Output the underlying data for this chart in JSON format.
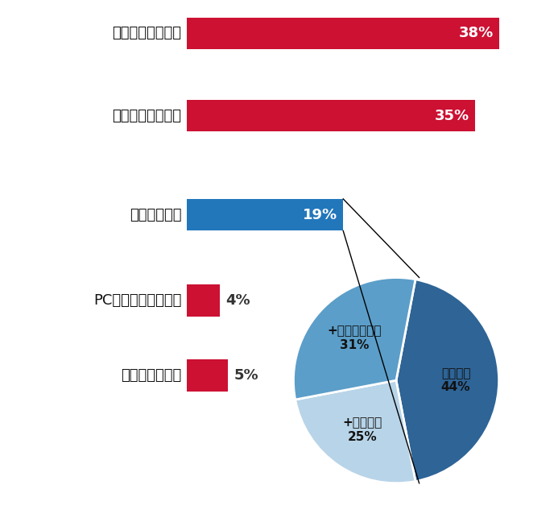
{
  "bar_labels": [
    "専用保存サービス",
    "ファイルサーバー",
    "基幹システム",
    "PCやハードディスク",
    "決まっていない"
  ],
  "bar_values": [
    38,
    35,
    19,
    4,
    5
  ],
  "bar_colors": [
    "#cc1133",
    "#cc1133",
    "#2277bb",
    "#cc1133",
    "#cc1133"
  ],
  "bar_pct_labels": [
    "38%",
    "35%",
    "19%",
    "4%",
    "5%"
  ],
  "pie_labels": [
    "基幹単体\n44%",
    "+サーバー\n25%",
    "+専用サービス\n31%"
  ],
  "pie_values": [
    44,
    25,
    31
  ],
  "pie_colors": [
    "#2e6496",
    "#b8d4e8",
    "#5b9ec9"
  ],
  "background_color": "#ffffff"
}
